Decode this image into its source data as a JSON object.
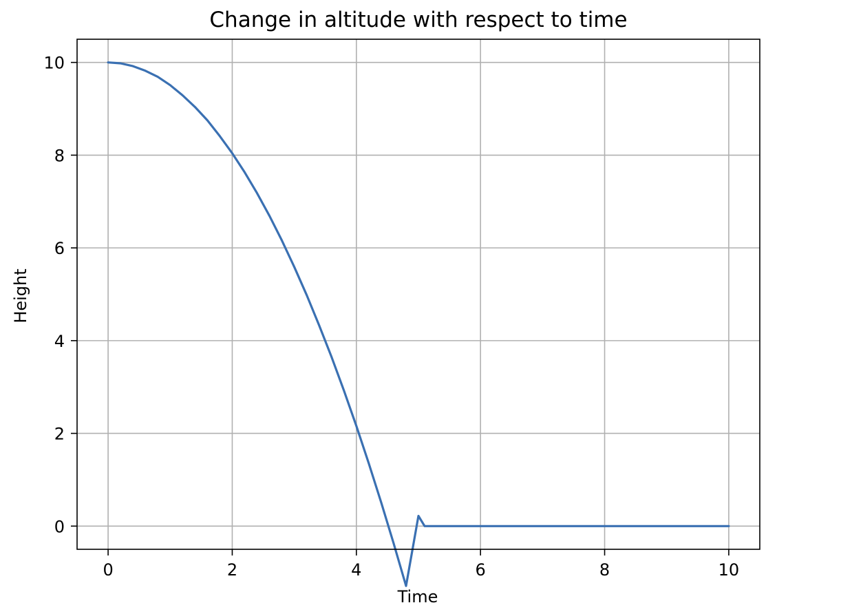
{
  "chart_data": {
    "type": "line",
    "title": "Change in altitude with respect to time",
    "xlabel": "Time",
    "ylabel": "Height",
    "xlim": [
      -0.5,
      10.5
    ],
    "ylim": [
      -0.5,
      10.5
    ],
    "xticks": [
      0,
      2,
      4,
      6,
      8,
      10
    ],
    "yticks": [
      0,
      2,
      4,
      6,
      8,
      10
    ],
    "xtick_labels": [
      "0",
      "2",
      "4",
      "6",
      "8",
      "10"
    ],
    "ytick_labels": [
      "0",
      "2",
      "4",
      "6",
      "8",
      "10"
    ],
    "grid": true,
    "series": [
      {
        "color": "#3a70b2",
        "x": [
          0,
          0.2,
          0.4,
          0.6,
          0.8,
          1.0,
          1.2,
          1.4,
          1.6,
          1.8,
          2.0,
          2.2,
          2.4,
          2.6,
          2.8,
          3.0,
          3.2,
          3.4,
          3.6,
          3.8,
          4.0,
          4.2,
          4.4,
          4.6,
          4.8,
          5.0,
          5.1,
          6.0,
          7.0,
          8.0,
          9.0,
          10.0
        ],
        "y": [
          10.0,
          9.98,
          9.92,
          9.82,
          9.69,
          9.51,
          9.29,
          9.04,
          8.75,
          8.41,
          8.04,
          7.63,
          7.18,
          6.69,
          6.16,
          5.59,
          4.98,
          4.33,
          3.65,
          2.92,
          2.16,
          1.35,
          0.51,
          -0.37,
          -1.29,
          0.22,
          0.0,
          0.0,
          0.0,
          0.0,
          0.0,
          0.0
        ]
      }
    ]
  }
}
